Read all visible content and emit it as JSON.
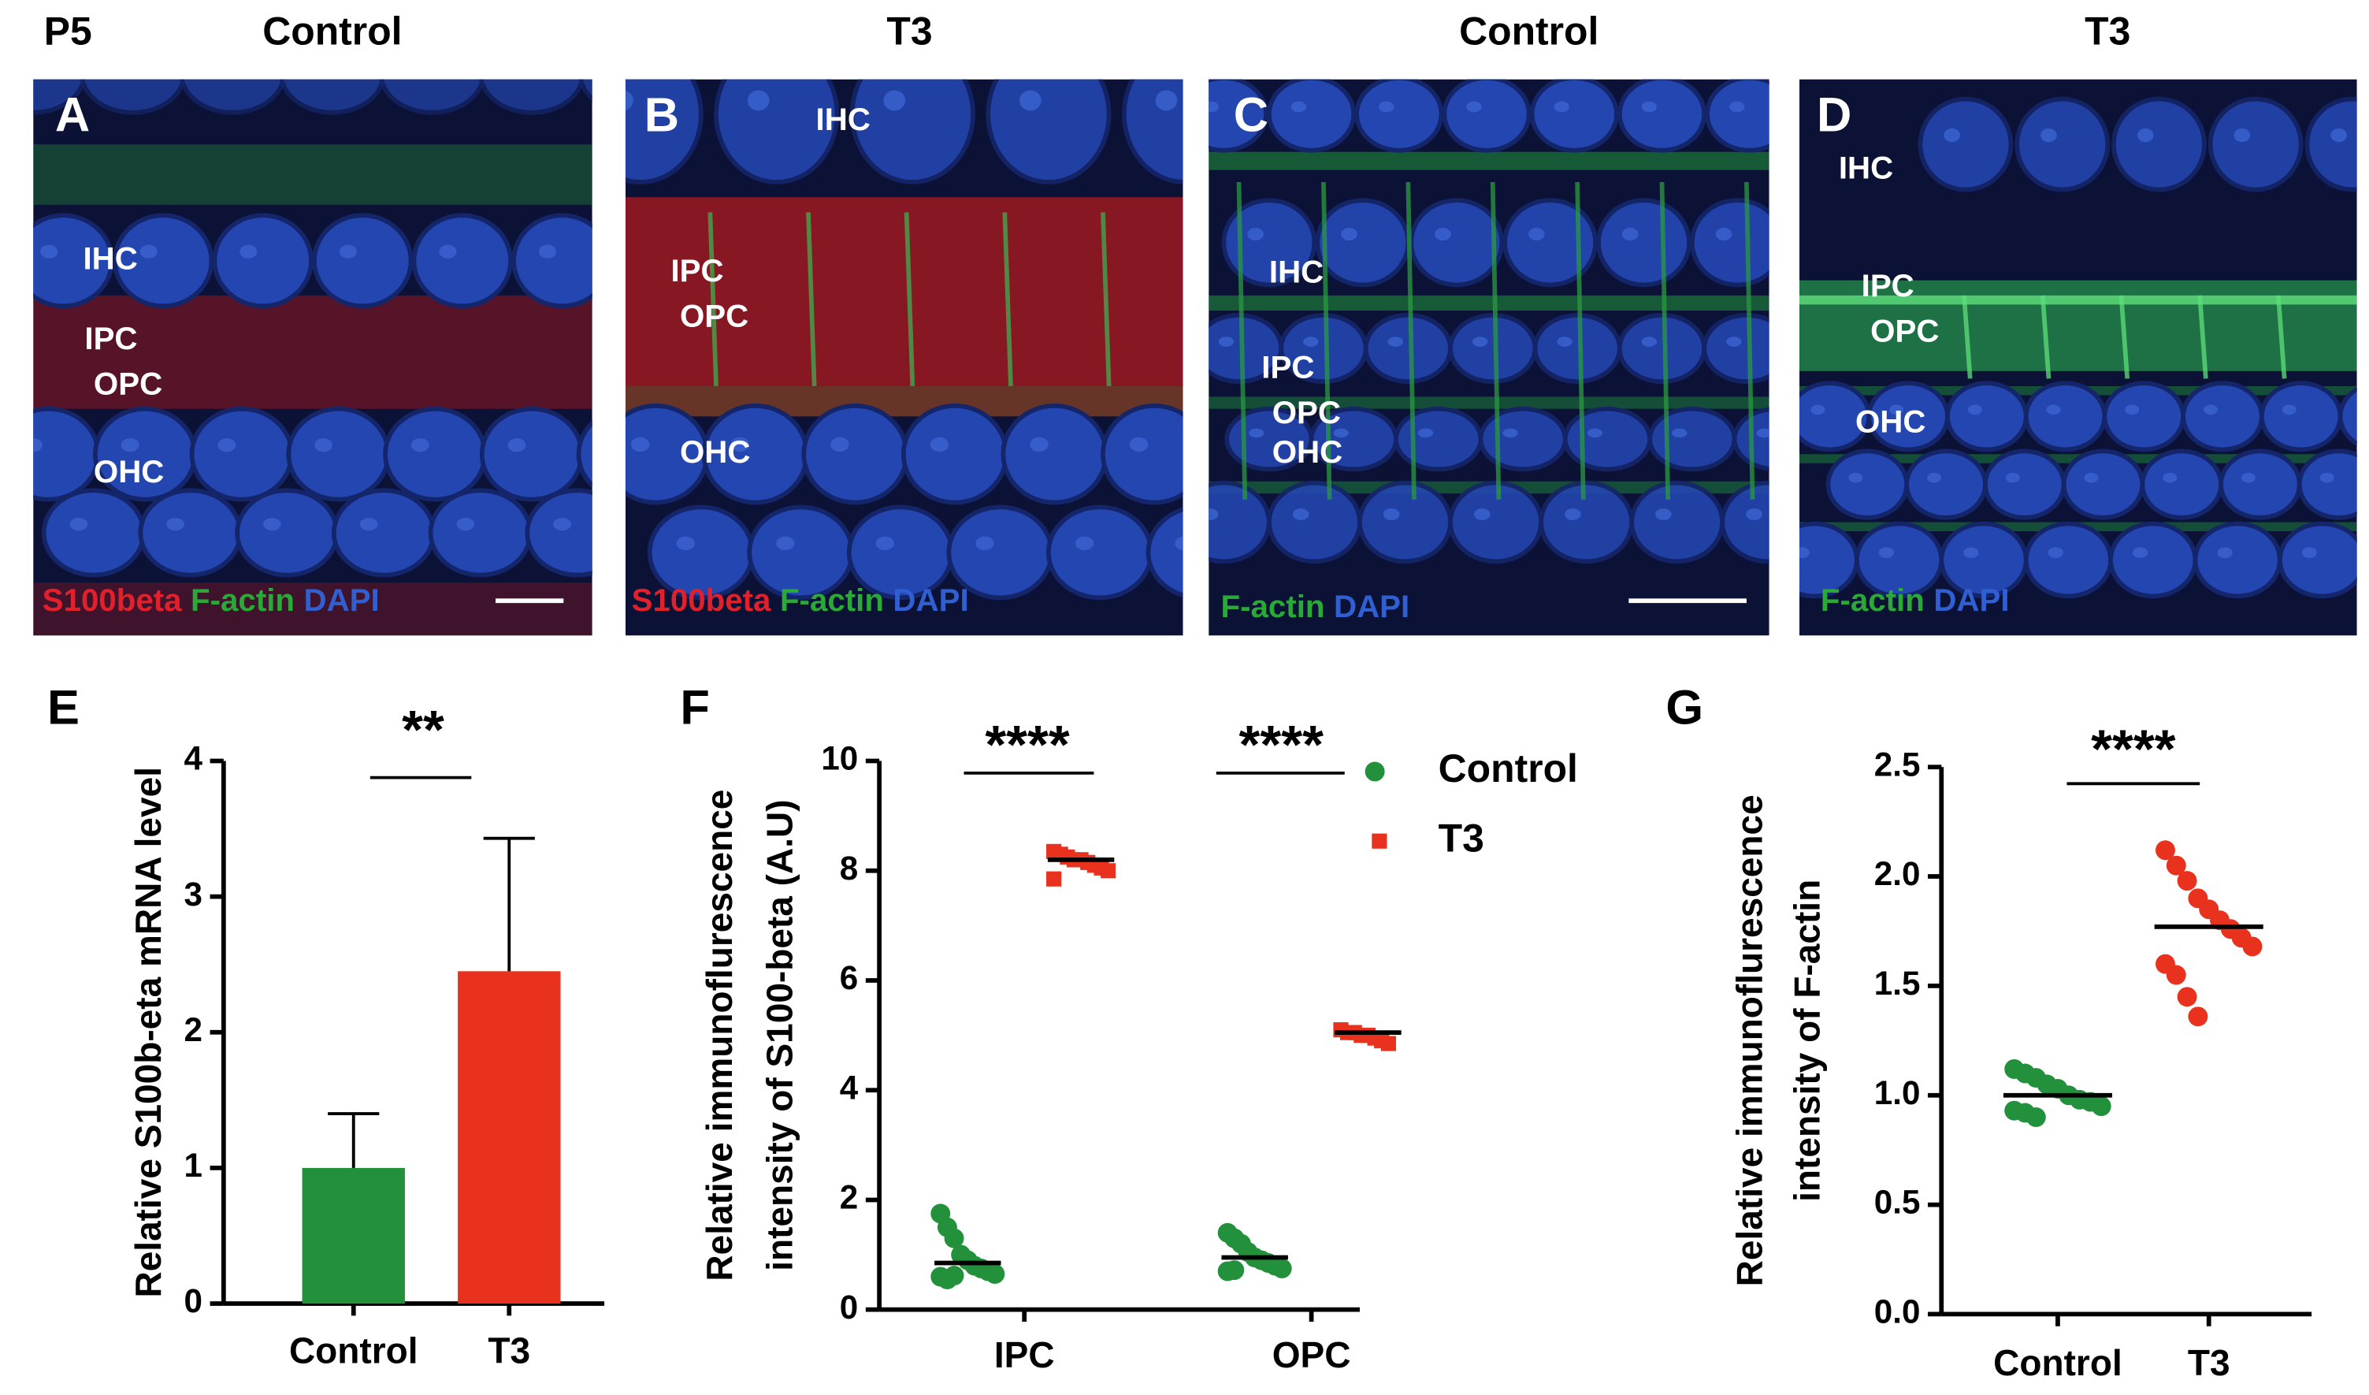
{
  "header": {
    "age": "P5",
    "groups": [
      "Control",
      "T3",
      "Control",
      "T3"
    ]
  },
  "micrographs": [
    {
      "letter": "A",
      "cells": [
        "IHC",
        "IPC",
        "OPC",
        "OHC"
      ],
      "stain": [
        {
          "text": "S100beta",
          "color": "#e0202a"
        },
        {
          "text": "F-actin",
          "color": "#2aa838"
        },
        {
          "text": "DAPI",
          "color": "#2f5fd0"
        }
      ]
    },
    {
      "letter": "B",
      "cells": [
        "IHC",
        "IPC",
        "OPC",
        "OHC"
      ],
      "stain": [
        {
          "text": "S100beta",
          "color": "#e0202a"
        },
        {
          "text": "F-actin",
          "color": "#2aa838"
        },
        {
          "text": "DAPI",
          "color": "#2f5fd0"
        }
      ]
    },
    {
      "letter": "C",
      "cells": [
        "IHC",
        "IPC",
        "OPC",
        "OHC"
      ],
      "stain": [
        {
          "text": "F-actin",
          "color": "#2aa838"
        },
        {
          "text": "DAPI",
          "color": "#2f5fd0"
        }
      ]
    },
    {
      "letter": "D",
      "cells": [
        "IHC",
        "IPC",
        "OPC",
        "OHC"
      ],
      "stain": [
        {
          "text": "F-actin",
          "color": "#2aa838"
        },
        {
          "text": "DAPI",
          "color": "#2f5fd0"
        }
      ]
    }
  ],
  "chart_data": [
    {
      "panel": "E",
      "type": "bar",
      "ylabel": "Relative S100b-eta mRNA level",
      "categories": [
        "Control",
        "T3"
      ],
      "values": [
        1.0,
        2.45
      ],
      "errors": [
        0.4,
        0.98
      ],
      "colors": [
        "#23903c",
        "#e8321e"
      ],
      "ylim": [
        0,
        4
      ],
      "yticks": [
        0,
        1,
        2,
        3,
        4
      ],
      "annotations": [
        "**"
      ]
    },
    {
      "panel": "F",
      "type": "scatter",
      "ylabel": [
        "Relative immunoflurescence",
        "intensity of S100-beta (A.U)"
      ],
      "categories": [
        "IPC",
        "OPC"
      ],
      "series": [
        {
          "name": "Control",
          "color": "#23903c",
          "marker": "circle",
          "values": [
            [
              1.75,
              1.5,
              1.3,
              1.0,
              0.9,
              0.8,
              0.75,
              0.7,
              0.65,
              0.6,
              0.55,
              0.62
            ],
            [
              1.4,
              1.3,
              1.2,
              1.05,
              0.95,
              0.9,
              0.85,
              0.8,
              0.75,
              0.7,
              0.72
            ]
          ],
          "means": [
            0.85,
            0.95
          ]
        },
        {
          "name": "T3",
          "color": "#e8321e",
          "marker": "square",
          "values": [
            [
              8.35,
              8.3,
              8.25,
              8.2,
              8.2,
              8.15,
              8.1,
              8.05,
              8.0,
              7.85
            ],
            [
              5.1,
              5.05,
              5.05,
              5.0,
              5.0,
              4.95,
              4.9,
              4.85
            ]
          ],
          "means": [
            8.2,
            5.05
          ]
        }
      ],
      "ylim": [
        0,
        10
      ],
      "yticks": [
        0,
        2,
        4,
        6,
        8,
        10
      ],
      "annotations": [
        "****",
        "****"
      ],
      "legend": true
    },
    {
      "panel": "G",
      "type": "scatter",
      "ylabel": [
        "Relative immunoflurescence",
        "intensity of F-actin"
      ],
      "categories": [
        "Control",
        "T3"
      ],
      "colors": [
        "#23903c",
        "#e8321e"
      ],
      "points": [
        [
          1.12,
          1.1,
          1.08,
          1.05,
          1.03,
          1.0,
          0.98,
          0.97,
          0.95,
          0.93,
          0.92,
          0.9
        ],
        [
          2.12,
          2.05,
          1.98,
          1.9,
          1.85,
          1.8,
          1.76,
          1.72,
          1.68,
          1.6,
          1.55,
          1.45,
          1.36
        ]
      ],
      "means": [
        1.0,
        1.77
      ],
      "ylim": [
        0,
        2.5
      ],
      "yticks": [
        {
          "value": 0,
          "label": "0.0"
        },
        0.5,
        {
          "value": 1,
          "label": "1.0"
        },
        1.5,
        {
          "value": 2,
          "label": "2.0"
        },
        2.5
      ],
      "annotations": [
        "****"
      ]
    }
  ]
}
